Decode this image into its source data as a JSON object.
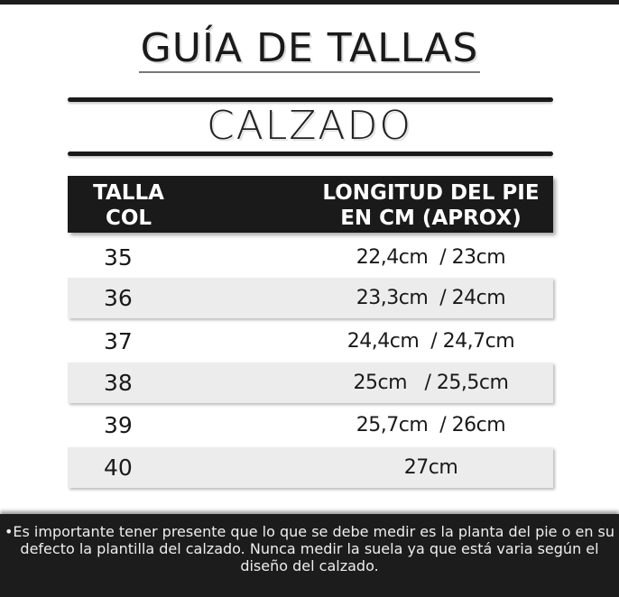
{
  "title": "GUÍA DE TALLAS",
  "subtitle": "CALZADO",
  "table": {
    "headers": [
      "TALLA COL",
      "LONGITUD DEL PIE EN CM (APROX)"
    ],
    "rows": [
      {
        "size": "35",
        "length": "22,4cm  / 23cm"
      },
      {
        "size": "36",
        "length": "23,3cm  / 24cm"
      },
      {
        "size": "37",
        "length": "24,4cm  / 24,7cm"
      },
      {
        "size": "38",
        "length": "25cm   / 25,5cm"
      },
      {
        "size": "39",
        "length": "25,7cm  / 26cm"
      },
      {
        "size": "40",
        "length": "27cm"
      }
    ]
  },
  "note": "•Es importante tener presente que lo que se debe medir es la planta del pie o en su defecto la plantilla del calzado. Nunca medir la suela ya que está varia según el diseño del calzado."
}
